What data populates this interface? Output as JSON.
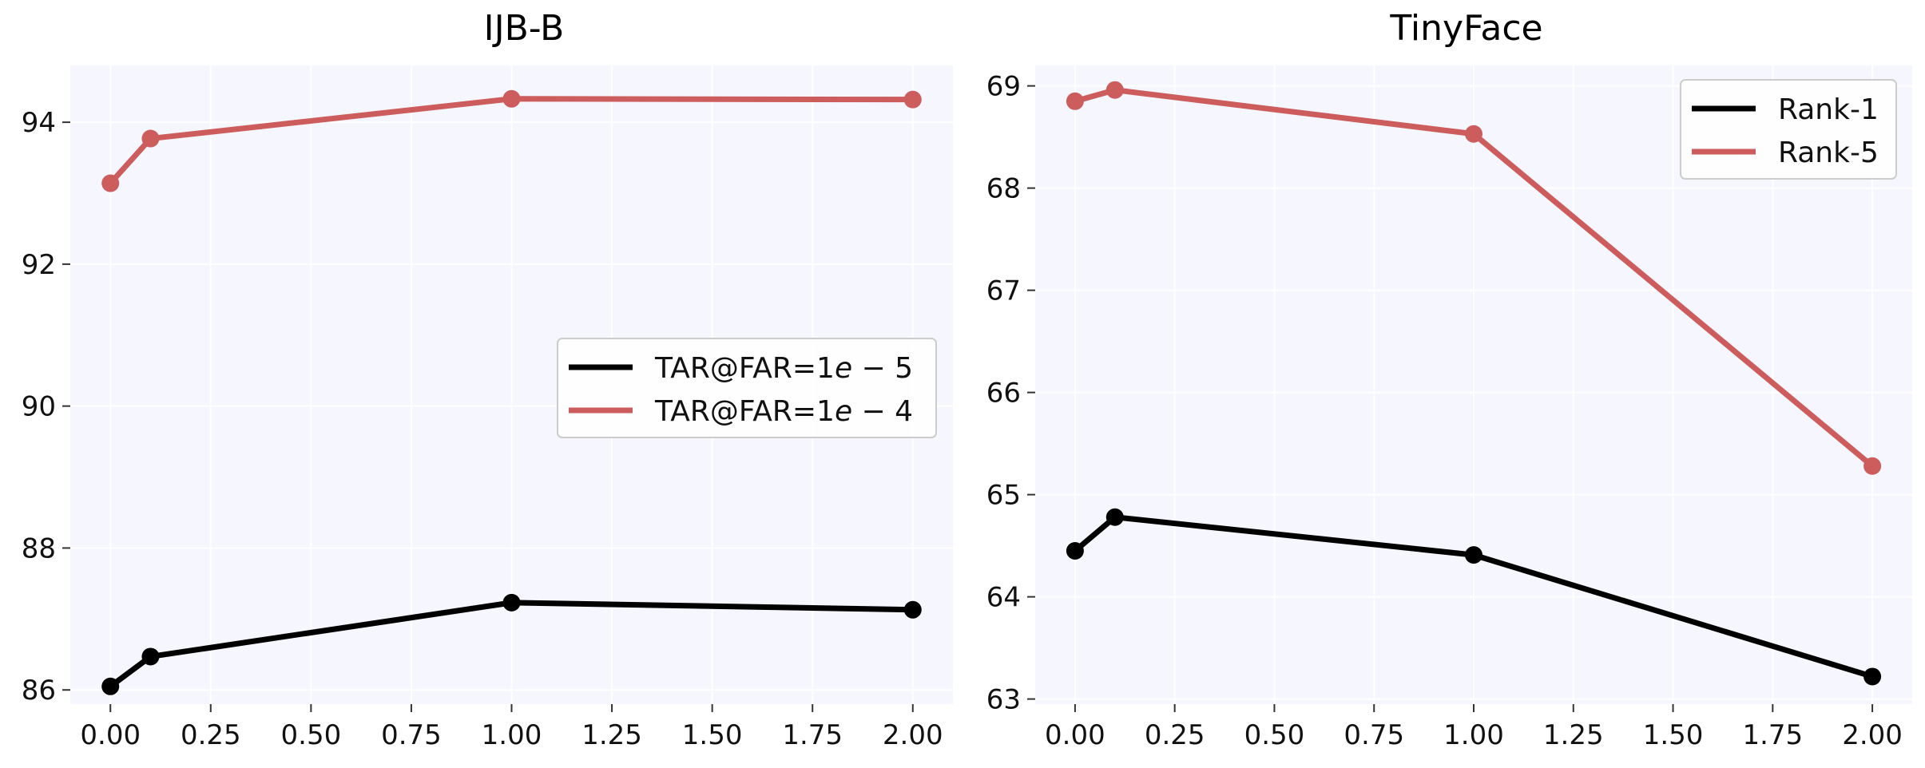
{
  "chart_data": [
    {
      "type": "line",
      "title": "IJB-B",
      "xlabel": "",
      "ylabel": "",
      "xlim": [
        -0.1,
        2.1
      ],
      "ylim": [
        85.8,
        94.8
      ],
      "xticks": [
        0.0,
        0.25,
        0.5,
        0.75,
        1.0,
        1.25,
        1.5,
        1.75,
        2.0
      ],
      "xtick_labels": [
        "0.00",
        "0.25",
        "0.50",
        "0.75",
        "1.00",
        "1.25",
        "1.50",
        "1.75",
        "2.00"
      ],
      "yticks": [
        86,
        88,
        90,
        92,
        94
      ],
      "ytick_labels": [
        "86",
        "88",
        "90",
        "92",
        "94"
      ],
      "grid": true,
      "legend_position": "center-right",
      "x": [
        0.0,
        0.1,
        1.0,
        2.0
      ],
      "series": [
        {
          "name": "TAR@FAR=1e-5",
          "label_main": "TAR@FAR=1",
          "label_e": "e",
          "label_tail": " − 5",
          "color": "#000000",
          "values": [
            86.05,
            86.47,
            87.23,
            87.13
          ]
        },
        {
          "name": "TAR@FAR=1e-4",
          "label_main": "TAR@FAR=1",
          "label_e": "e",
          "label_tail": " − 4",
          "color": "#cd5c5c",
          "values": [
            93.14,
            93.77,
            94.33,
            94.32
          ]
        }
      ]
    },
    {
      "type": "line",
      "title": "TinyFace",
      "xlabel": "",
      "ylabel": "",
      "xlim": [
        -0.1,
        2.1
      ],
      "ylim": [
        62.95,
        69.2
      ],
      "xticks": [
        0.0,
        0.25,
        0.5,
        0.75,
        1.0,
        1.25,
        1.5,
        1.75,
        2.0
      ],
      "xtick_labels": [
        "0.00",
        "0.25",
        "0.50",
        "0.75",
        "1.00",
        "1.25",
        "1.50",
        "1.75",
        "2.00"
      ],
      "yticks": [
        63,
        64,
        65,
        66,
        67,
        68,
        69
      ],
      "ytick_labels": [
        "63",
        "64",
        "65",
        "66",
        "67",
        "68",
        "69"
      ],
      "grid": true,
      "legend_position": "top-right",
      "x": [
        0.0,
        0.1,
        1.0,
        2.0
      ],
      "series": [
        {
          "name": "Rank-1",
          "label_main": "Rank-1",
          "label_e": "",
          "label_tail": "",
          "color": "#000000",
          "values": [
            64.45,
            64.78,
            64.41,
            63.22
          ]
        },
        {
          "name": "Rank-5",
          "label_main": "Rank-5",
          "label_e": "",
          "label_tail": "",
          "color": "#cd5c5c",
          "values": [
            68.85,
            68.96,
            68.53,
            65.28
          ]
        }
      ]
    }
  ]
}
